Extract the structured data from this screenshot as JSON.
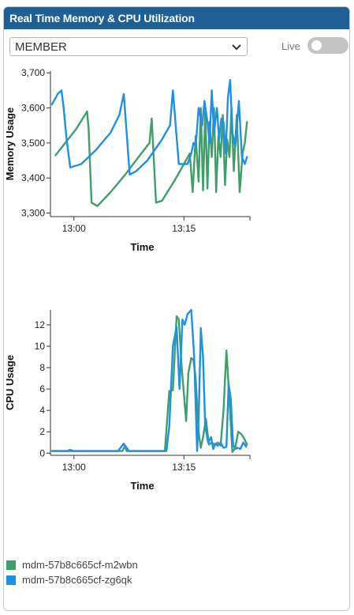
{
  "panel": {
    "title": "Real Time Memory & CPU Utilization"
  },
  "selector": {
    "value": "MEMBER",
    "icon": "chevron-down-icon"
  },
  "live": {
    "label": "Live",
    "enabled": false
  },
  "colors": {
    "header": "#1f5f94",
    "series1": "#3f9e6a",
    "series2": "#1e90e6"
  },
  "legend": [
    {
      "name": "mdm-57b8c665cf-m2wbn",
      "color": "#3f9e6a"
    },
    {
      "name": "mdm-57b8c665cf-zg6qk",
      "color": "#1e90e6"
    }
  ],
  "chart_data": [
    {
      "type": "line",
      "xlabel": "Time",
      "ylabel": "Memory Usage",
      "x_ticks": [
        "13:00",
        "13:15"
      ],
      "y_ticks": [
        "3,300",
        "3,400",
        "3,500",
        "3,600",
        "3,700"
      ],
      "xlim_minutes": [
        56.8,
        84.0
      ],
      "ylim": [
        3290,
        3705
      ],
      "series": [
        {
          "name": "mdm-57b8c665cf-m2wbn",
          "x": [
            57.5,
            60.3,
            61.2,
            61.8,
            62.0,
            62.4,
            63.2,
            65.0,
            67.0,
            69.0,
            70.3,
            70.6,
            71.2,
            72.0,
            73.8,
            75.0,
            75.8,
            76.2,
            76.6,
            77.0,
            77.3,
            77.6,
            77.9,
            78.2,
            78.5,
            78.8,
            79.1,
            79.4,
            79.7,
            80.0,
            80.3,
            80.6,
            80.9,
            81.2,
            81.5,
            81.8,
            82.2,
            82.6,
            83.0,
            83.3,
            83.6
          ],
          "y": [
            3465,
            3540,
            3570,
            3590,
            3540,
            3330,
            3320,
            3360,
            3410,
            3465,
            3500,
            3570,
            3330,
            3335,
            3395,
            3440,
            3470,
            3360,
            3520,
            3390,
            3600,
            3365,
            3590,
            3370,
            3560,
            3460,
            3600,
            3360,
            3520,
            3460,
            3580,
            3380,
            3510,
            3460,
            3600,
            3420,
            3580,
            3360,
            3470,
            3500,
            3560
          ]
        },
        {
          "name": "mdm-57b8c665cf-zg6qk",
          "x": [
            57.0,
            57.8,
            58.3,
            58.6,
            59.0,
            59.5,
            61.0,
            63.0,
            65.0,
            66.2,
            66.8,
            67.6,
            68.5,
            70.0,
            72.0,
            73.1,
            73.5,
            74.3,
            75.5,
            76.0,
            76.3,
            76.6,
            77.0,
            77.5,
            77.8,
            78.2,
            78.5,
            78.8,
            79.1,
            79.5,
            79.8,
            80.1,
            80.4,
            80.7,
            81.0,
            81.3,
            81.6,
            82.0,
            82.5,
            82.9,
            83.3,
            83.6
          ],
          "y": [
            3610,
            3640,
            3650,
            3600,
            3510,
            3430,
            3440,
            3480,
            3530,
            3580,
            3640,
            3410,
            3420,
            3450,
            3510,
            3550,
            3650,
            3440,
            3440,
            3470,
            3500,
            3490,
            3600,
            3550,
            3620,
            3560,
            3500,
            3650,
            3530,
            3600,
            3510,
            3570,
            3560,
            3470,
            3630,
            3680,
            3530,
            3490,
            3620,
            3460,
            3440,
            3460
          ]
        }
      ]
    },
    {
      "type": "line",
      "xlabel": "Time",
      "ylabel": "CPU Usage",
      "x_ticks": [
        "13:00",
        "13:15"
      ],
      "y_ticks": [
        "0",
        "2",
        "4",
        "6",
        "8",
        "10",
        "12"
      ],
      "xlim_minutes": [
        56.8,
        84.0
      ],
      "ylim": [
        -0.2,
        13.4
      ],
      "series": [
        {
          "name": "mdm-57b8c665cf-m2wbn",
          "x": [
            57.0,
            58.0,
            59.0,
            60.0,
            61.0,
            62.0,
            63.0,
            64.0,
            65.0,
            66.0,
            66.6,
            67.0,
            67.5,
            68.0,
            69.0,
            70.0,
            71.0,
            72.0,
            72.4,
            73.0,
            73.5,
            74.0,
            74.3,
            74.7,
            75.0,
            75.3,
            75.6,
            76.0,
            76.3,
            76.6,
            77.0,
            77.3,
            77.6,
            78.0,
            78.4,
            78.8,
            79.2,
            79.6,
            80.0,
            80.4,
            80.8,
            81.2,
            81.6,
            82.0,
            82.4,
            82.8,
            83.2,
            83.6
          ],
          "y": [
            0.2,
            0.2,
            0.2,
            0.2,
            0.2,
            0.2,
            0.2,
            0.2,
            0.2,
            0.2,
            0.2,
            0.7,
            0.2,
            0.2,
            0.2,
            0.2,
            0.2,
            0.2,
            0.2,
            5.8,
            5.9,
            12.8,
            12.5,
            8.0,
            5.5,
            3.0,
            7.5,
            8.9,
            8.7,
            7.0,
            2.0,
            0.5,
            1.5,
            3.2,
            0.8,
            1.0,
            0.8,
            1.0,
            0.7,
            4.0,
            9.6,
            5.0,
            0.1,
            0.5,
            2.0,
            1.8,
            1.4,
            0.8
          ]
        },
        {
          "name": "mdm-57b8c665cf-zg6qk",
          "x": [
            57.0,
            58.0,
            59.0,
            59.5,
            60.0,
            61.0,
            62.0,
            63.0,
            64.0,
            65.0,
            66.0,
            66.8,
            67.2,
            67.6,
            68.0,
            69.0,
            70.0,
            71.0,
            72.0,
            72.6,
            73.0,
            73.5,
            74.0,
            74.4,
            74.8,
            75.1,
            75.5,
            76.0,
            76.4,
            76.8,
            77.0,
            77.3,
            77.6,
            77.9,
            78.3,
            78.7,
            79.0,
            79.3,
            79.6,
            80.0,
            80.4,
            80.8,
            81.1,
            81.4,
            81.7,
            82.0,
            82.3,
            82.7,
            83.1,
            83.5
          ],
          "y": [
            0.2,
            0.2,
            0.2,
            0.3,
            0.2,
            0.2,
            0.2,
            0.2,
            0.2,
            0.2,
            0.2,
            0.9,
            0.2,
            0.2,
            0.2,
            0.2,
            0.2,
            0.2,
            0.2,
            0.2,
            2.5,
            10.0,
            11.8,
            6.0,
            12.5,
            12.0,
            13.0,
            13.4,
            9.0,
            0.2,
            3.0,
            11.7,
            9.0,
            2.5,
            1.0,
            1.5,
            0.4,
            0.9,
            0.7,
            1.0,
            0.5,
            0.6,
            6.5,
            5.0,
            0.8,
            0.4,
            0.5,
            0.4,
            1.0,
            0.6
          ]
        }
      ]
    }
  ]
}
